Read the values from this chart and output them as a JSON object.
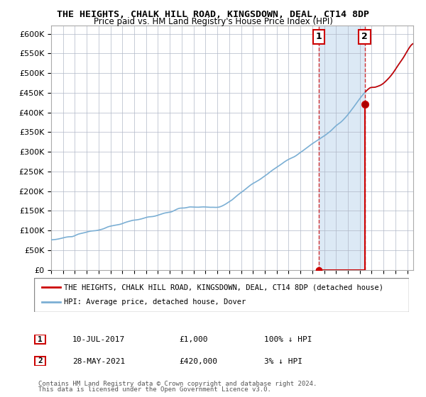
{
  "title": "THE HEIGHTS, CHALK HILL ROAD, KINGSDOWN, DEAL, CT14 8DP",
  "subtitle": "Price paid vs. HM Land Registry's House Price Index (HPI)",
  "legend_line1": "THE HEIGHTS, CHALK HILL ROAD, KINGSDOWN, DEAL, CT14 8DP (detached house)",
  "legend_line2": "HPI: Average price, detached house, Dover",
  "annotation1_date": "10-JUL-2017",
  "annotation1_price": "£1,000",
  "annotation1_hpi": "100% ↓ HPI",
  "annotation2_date": "28-MAY-2021",
  "annotation2_price": "£420,000",
  "annotation2_hpi": "3% ↓ HPI",
  "footnote1": "Contains HM Land Registry data © Crown copyright and database right 2024.",
  "footnote2": "This data is licensed under the Open Government Licence v3.0.",
  "hpi_color": "#7bafd4",
  "sale_color": "#cc0000",
  "sale1_x": 2017.53,
  "sale1_y": 1000,
  "sale2_x": 2021.41,
  "sale2_y": 420000,
  "ylim": [
    0,
    620000
  ],
  "xlim_start": 1995.0,
  "xlim_end": 2025.5,
  "background_color": "#dce9f5",
  "plot_bg": "#ffffff",
  "grid_color": "#b0b8c8"
}
